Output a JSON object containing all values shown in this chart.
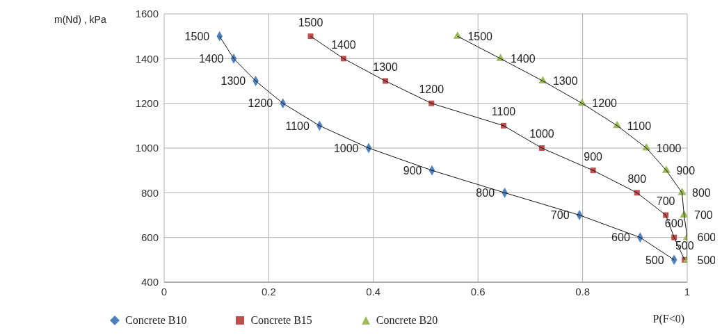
{
  "chart_data": {
    "type": "scatter",
    "xlabel": "P(F<0)",
    "ylabel": "m(Nd) , kPa",
    "xlim": [
      0,
      1
    ],
    "xticks": [
      0,
      0.2,
      0.4,
      0.6,
      0.8,
      1
    ],
    "ylim": [
      400,
      1600
    ],
    "yticks": [
      400,
      600,
      800,
      1000,
      1200,
      1400,
      1600
    ],
    "grid": true,
    "legend": "bottom",
    "line_style": "solid",
    "series": [
      {
        "name": "Concrete  B10",
        "color": "#4f81bd",
        "marker": "diamond",
        "x": [
          0.106,
          0.133,
          0.175,
          0.227,
          0.297,
          0.391,
          0.512,
          0.651,
          0.794,
          0.91,
          0.975
        ],
        "values": [
          1500,
          1400,
          1300,
          1200,
          1100,
          1000,
          900,
          800,
          700,
          600,
          500
        ],
        "value_labels": [
          "1500",
          "1400",
          "1300",
          "1200",
          "1100",
          "1000",
          "900",
          "800",
          "700",
          "600",
          "500"
        ]
      },
      {
        "name": "Concrete  B15",
        "color": "#c0504d",
        "marker": "square",
        "x": [
          0.28,
          0.343,
          0.423,
          0.511,
          0.649,
          0.722,
          0.82,
          0.904,
          0.959,
          0.975,
          0.995
        ],
        "values": [
          1500,
          1400,
          1300,
          1200,
          1100,
          1000,
          900,
          800,
          700,
          600,
          500
        ],
        "value_labels": [
          "1500",
          "1400",
          "1300",
          "1200",
          "1100",
          "1000",
          "900",
          "800",
          "700",
          "600",
          "500"
        ]
      },
      {
        "name": "Concrete  B20",
        "color": "#9bbb59",
        "marker": "triangle",
        "x": [
          0.561,
          0.643,
          0.724,
          0.799,
          0.866,
          0.922,
          0.96,
          0.99,
          0.994,
          1,
          1
        ],
        "values": [
          1500,
          1400,
          1300,
          1200,
          1100,
          1000,
          900,
          800,
          700,
          600,
          500
        ],
        "value_labels": [
          "1500",
          "1400",
          "1300",
          "1200",
          "1100",
          "1000",
          "900",
          "800",
          "700",
          "600",
          "500"
        ]
      },
      {
        "type": "line",
        "color": "#111111",
        "marker": "none",
        "x": [
          0.106,
          0.133,
          0.175,
          0.227,
          0.297,
          0.391,
          0.512,
          0.651,
          0.794,
          0.91,
          0.975
        ],
        "values": [
          1500,
          1400,
          1300,
          1200,
          1100,
          1000,
          900,
          800,
          700,
          600,
          500
        ]
      },
      {
        "type": "line",
        "color": "#111111",
        "marker": "none",
        "x": [
          0.28,
          0.343,
          0.423,
          0.511,
          0.649,
          0.722,
          0.82,
          0.904,
          0.959,
          0.975,
          0.995
        ],
        "values": [
          1500,
          1400,
          1300,
          1200,
          1100,
          1000,
          900,
          800,
          700,
          600,
          500
        ]
      },
      {
        "type": "line",
        "color": "#111111",
        "marker": "none",
        "x": [
          0.561,
          0.643,
          0.724,
          0.799,
          0.866,
          0.922,
          0.96,
          0.99,
          0.994,
          1,
          1
        ],
        "values": [
          1500,
          1400,
          1300,
          1200,
          1100,
          1000,
          900,
          800,
          700,
          600,
          500
        ]
      }
    ]
  }
}
